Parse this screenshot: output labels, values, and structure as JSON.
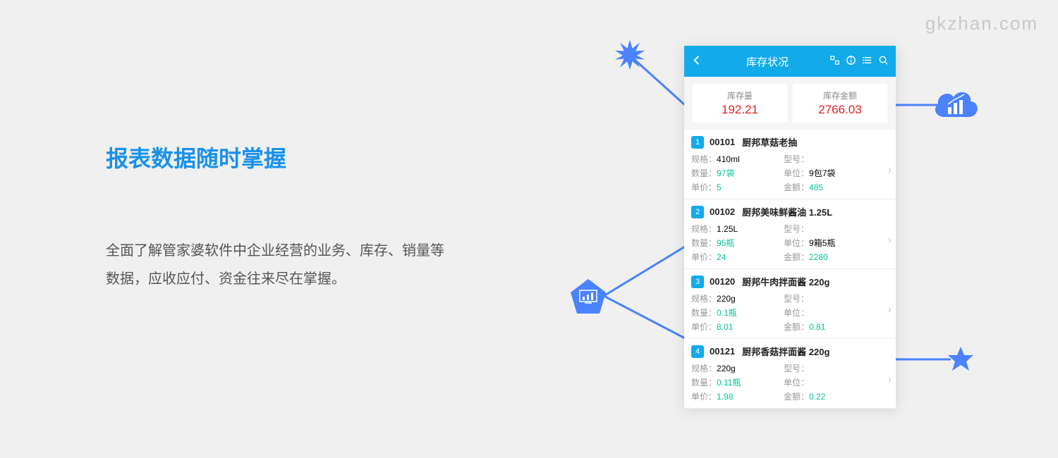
{
  "watermark": "gkzhan.com",
  "headline": "报表数据随时掌握",
  "description": "全面了解管家婆软件中企业经营的业务、库存、销量等数据，应收应付、资金往来尽在掌握。",
  "colors": {
    "accent": "#1991eb",
    "header": "#13aaea",
    "connector": "#4a82ff",
    "value_red": "#e02020",
    "value_teal": "#0abf9c",
    "page_bg": "#f0f0f0"
  },
  "phone": {
    "header_title": "库存状况",
    "summary": [
      {
        "label": "库存量",
        "value": "192.21"
      },
      {
        "label": "库存金额",
        "value": "2766.03"
      }
    ],
    "field_labels": {
      "spec": "规格：",
      "model": "型号：",
      "qty": "数量：",
      "unit": "单位：",
      "price": "单价：",
      "amount": "金额："
    },
    "items": [
      {
        "num": "1",
        "code": "00101",
        "name": "厨邦草菇老抽",
        "spec": "410ml",
        "model": "",
        "qty": "97袋",
        "unit": "9包7袋",
        "price": "5",
        "amount": "485"
      },
      {
        "num": "2",
        "code": "00102",
        "name": "厨邦美味鲜酱油 1.25L",
        "spec": "1.25L",
        "model": "",
        "qty": "95瓶",
        "unit": "9箱5瓶",
        "price": "24",
        "amount": "2280"
      },
      {
        "num": "3",
        "code": "00120",
        "name": "厨邦牛肉拌面酱 220g",
        "spec": "220g",
        "model": "",
        "qty": "0.1瓶",
        "unit": "",
        "price": "8.01",
        "amount": "0.81"
      },
      {
        "num": "4",
        "code": "00121",
        "name": "厨邦香菇拌面酱 220g",
        "spec": "220g",
        "model": "",
        "qty": "0.11瓶",
        "unit": "",
        "price": "1.98",
        "amount": "0.22"
      }
    ]
  }
}
